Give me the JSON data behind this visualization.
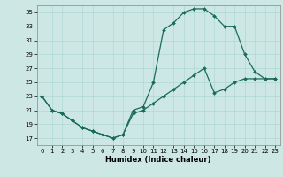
{
  "xlabel": "Humidex (Indice chaleur)",
  "bg_color": "#cde8e4",
  "grid_color": "#b0d8d4",
  "line_color": "#1a6b5a",
  "xlim": [
    -0.5,
    23.5
  ],
  "ylim": [
    16,
    36
  ],
  "yticks": [
    17,
    19,
    21,
    23,
    25,
    27,
    29,
    31,
    33,
    35
  ],
  "xticks": [
    0,
    1,
    2,
    3,
    4,
    5,
    6,
    7,
    8,
    9,
    10,
    11,
    12,
    13,
    14,
    15,
    16,
    17,
    18,
    19,
    20,
    21,
    22,
    23
  ],
  "line1_x": [
    0,
    1,
    2,
    3,
    4,
    5,
    6,
    7,
    8,
    9,
    10,
    11,
    12,
    13,
    14,
    15,
    16,
    17,
    18,
    19,
    20,
    21,
    22,
    23
  ],
  "line1_y": [
    23,
    21,
    20.5,
    19.5,
    18.5,
    18,
    17.5,
    17,
    17.5,
    21,
    21.5,
    25,
    32.5,
    33.5,
    35,
    35.5,
    35.5,
    34.5,
    33,
    33,
    29,
    26.5,
    25.5,
    25.5
  ],
  "line2_x": [
    0,
    1,
    2,
    3,
    4,
    5,
    6,
    7,
    8,
    9,
    10,
    11,
    12,
    13,
    14,
    15,
    16,
    17,
    18,
    19,
    20,
    21,
    22,
    23
  ],
  "line2_y": [
    23,
    21,
    20.5,
    19.5,
    18.5,
    18,
    17.5,
    17,
    17.5,
    20.5,
    21,
    22,
    23,
    24,
    25,
    26,
    27,
    23.5,
    24,
    25,
    25.5,
    25.5,
    25.5,
    25.5
  ],
  "marker": "D",
  "markersize": 2.0,
  "linewidth": 0.9,
  "xlabel_fontsize": 6.0,
  "tick_fontsize": 5.0
}
